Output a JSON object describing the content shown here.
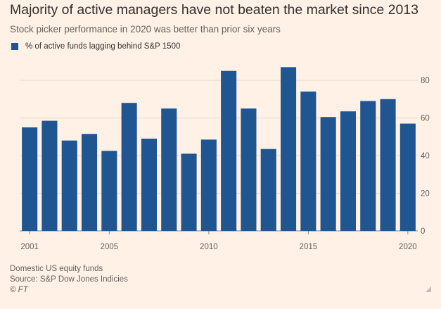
{
  "title": "Majority of active managers have not beaten the market since 2013",
  "subtitle": "Stock picker performance in 2020 was better than prior six years",
  "legend_label": "% of active funds lagging behind S&P 1500",
  "footer": {
    "note": "Domestic US equity funds",
    "source": "Source: S&P Dow Jones Indicies",
    "credit": "© FT"
  },
  "colors": {
    "bar": "#1f5591",
    "background": "#fff1e5",
    "grid": "#e6d9ce"
  },
  "chart_data": {
    "type": "bar",
    "title": "Majority of active managers have not beaten the market since 2013",
    "subtitle": "Stock picker performance in 2020 was better than prior six years",
    "xlabel": "",
    "ylabel": "",
    "categories": [
      2001,
      2002,
      2003,
      2004,
      2005,
      2006,
      2007,
      2008,
      2009,
      2010,
      2011,
      2012,
      2013,
      2014,
      2015,
      2016,
      2017,
      2018,
      2019,
      2020
    ],
    "series": [
      {
        "name": "% of active funds lagging behind S&P 1500",
        "values": [
          55,
          58.5,
          48,
          51.5,
          42.5,
          68,
          49,
          65,
          41,
          48.5,
          85,
          65,
          43.5,
          87,
          74,
          60.5,
          63.5,
          69,
          70,
          57
        ]
      }
    ],
    "x_tick_labels": [
      "2001",
      "2005",
      "2010",
      "2015",
      "2020"
    ],
    "y_ticks": [
      0,
      20,
      40,
      60,
      80
    ],
    "ylim": [
      0,
      92
    ],
    "y_axis_position": "right",
    "grid": true,
    "legend_position": "top-left"
  }
}
